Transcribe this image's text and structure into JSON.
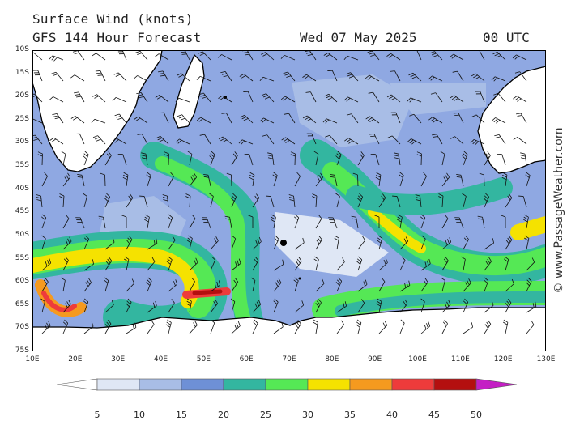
{
  "header": {
    "title_line1": "Surface Wind (knots)",
    "title_line2": "GFS 144 Hour Forecast",
    "date": "Wed 07 May 2025",
    "time": "00 UTC"
  },
  "copyright": "© www.PassageWeather.com",
  "map": {
    "lon_range": [
      10,
      130
    ],
    "lat_range": [
      -10,
      -75
    ],
    "lat_labels": [
      "10S",
      "15S",
      "20S",
      "25S",
      "30S",
      "35S",
      "40S",
      "45S",
      "50S",
      "55S",
      "60S",
      "65S",
      "70S",
      "75S"
    ],
    "lon_labels": [
      "10E",
      "20E",
      "30E",
      "40E",
      "50E",
      "60E",
      "70E",
      "80E",
      "90E",
      "100E",
      "110E",
      "120E",
      "130E"
    ]
  },
  "scale": {
    "labels": [
      "5",
      "10",
      "15",
      "20",
      "25",
      "30",
      "35",
      "40",
      "45",
      "50"
    ],
    "colors": [
      "#ffffff",
      "#dfe7f5",
      "#a8bde6",
      "#6e90d6",
      "#33b6a0",
      "#55e855",
      "#f5e200",
      "#f59a1f",
      "#ee3b3b",
      "#b40f0f",
      "#c41fc4"
    ]
  },
  "colors": {
    "ocean_base": "#8fa8e2",
    "land": "#ffffff",
    "coast": "#000000"
  }
}
